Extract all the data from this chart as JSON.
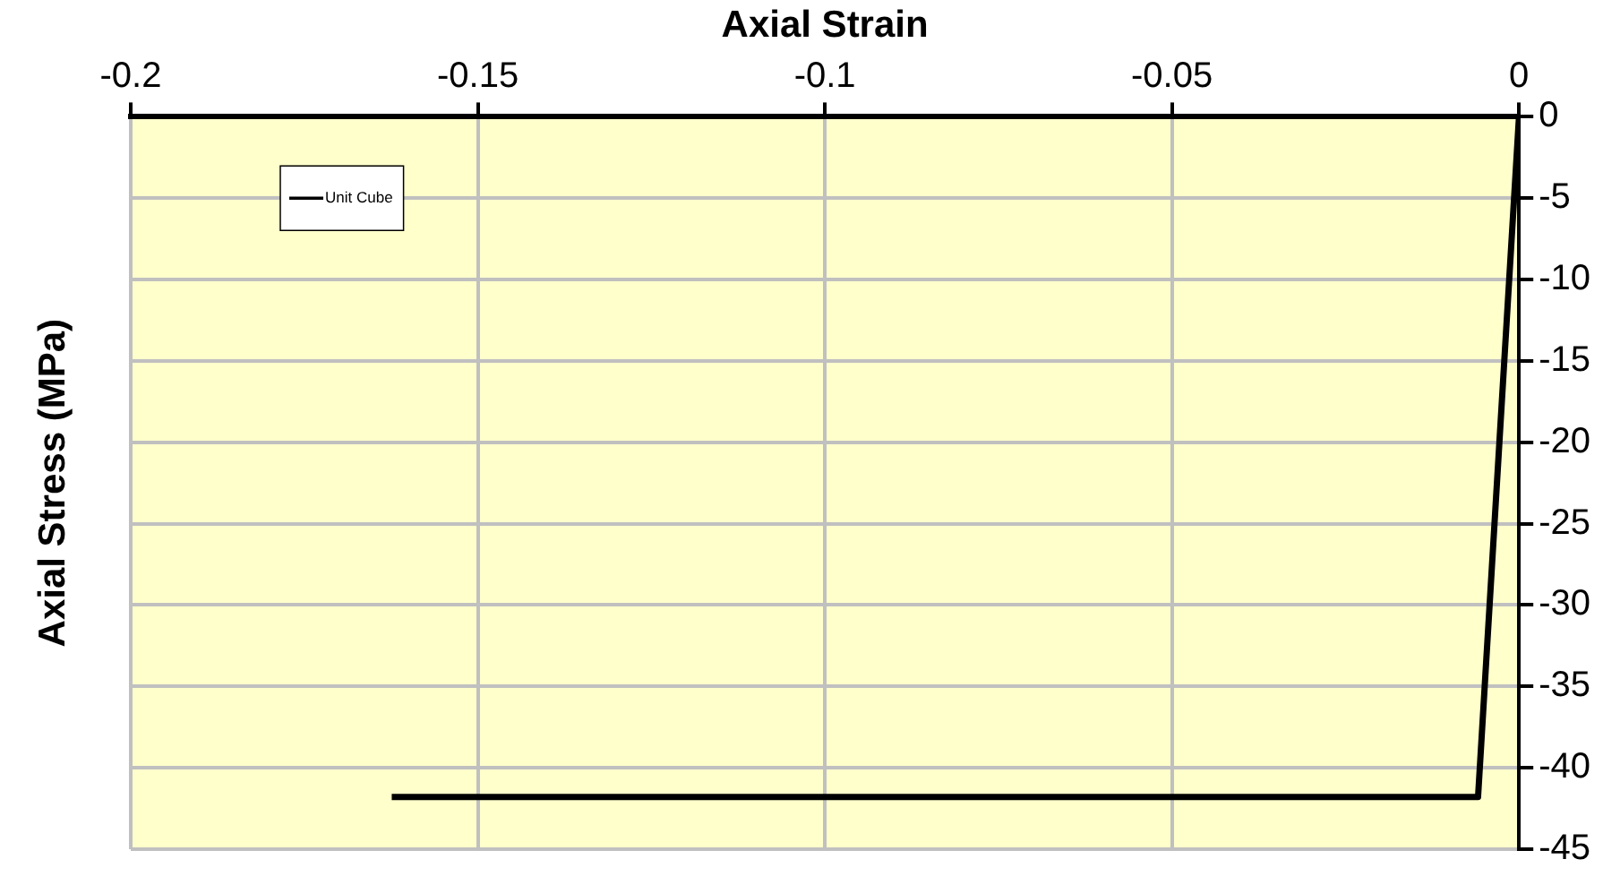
{
  "chart_data": {
    "type": "line",
    "xlabel": "Axial Strain",
    "ylabel": "Axial Stress (MPa)",
    "series": [
      {
        "name": "Unit Cube",
        "color": "#000000",
        "x": [
          0,
          -0.0059,
          -0.1624
        ],
        "values": [
          0,
          -41.8,
          -41.8
        ]
      }
    ],
    "xlim": [
      -0.2,
      0
    ],
    "xticks": [
      -0.2,
      -0.15,
      -0.1,
      -0.05,
      0
    ],
    "ylim": [
      -45,
      0
    ],
    "yticks": [
      0,
      -5,
      -10,
      -15,
      -20,
      -25,
      -30,
      -35,
      -40,
      -45
    ],
    "grid": true,
    "legend": "left",
    "marker": "none",
    "line_style": "solid"
  }
}
